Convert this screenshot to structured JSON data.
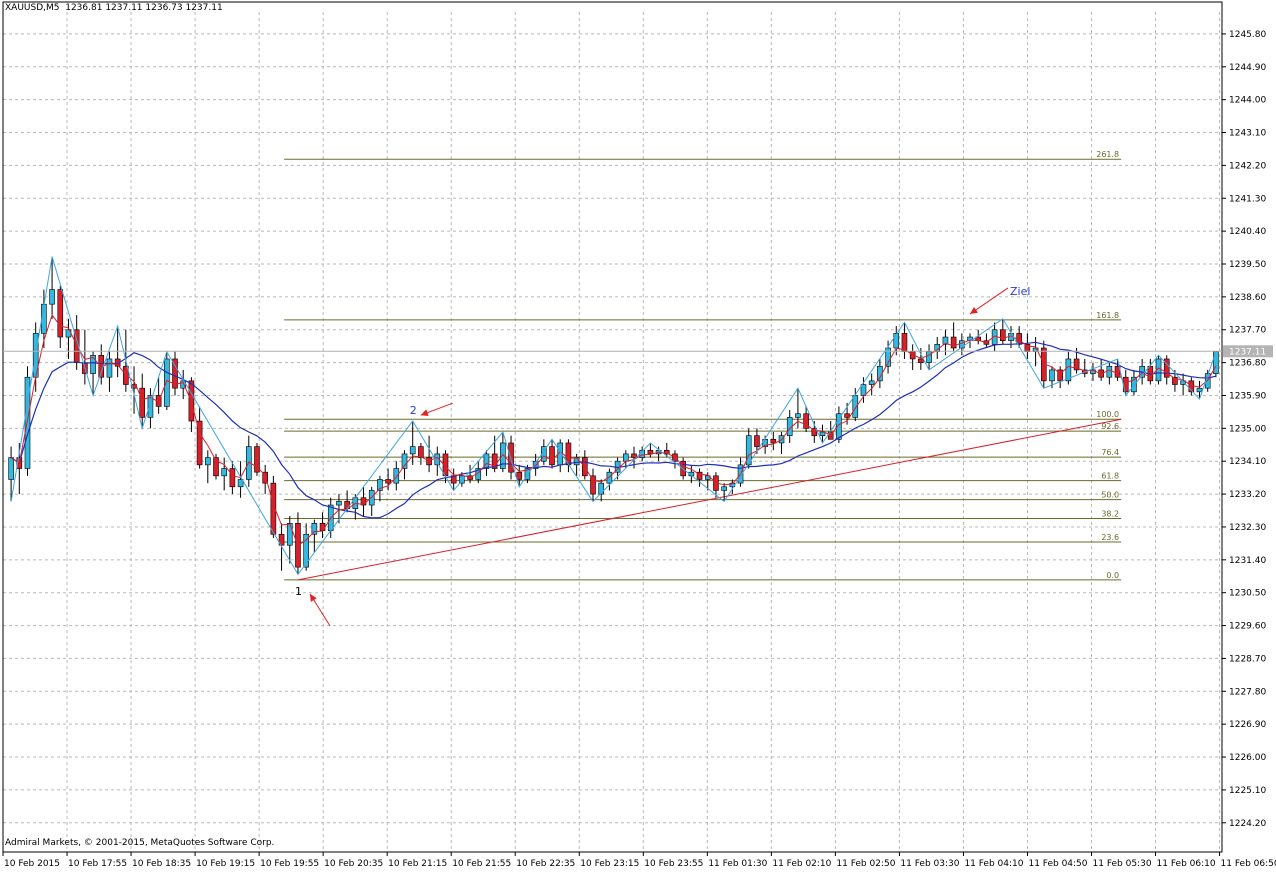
{
  "header": {
    "symbol": "XAUUSD,M5",
    "ohlc": "1236.81 1237.11 1236.73 1237.11"
  },
  "footer": {
    "copyright": "Admiral Markets, © 2001-2015, MetaQuotes Software Corp."
  },
  "colors": {
    "bull": "#33b8e0",
    "bear": "#d8202a",
    "ma_fast": "#d8202a",
    "ma_slow": "#1f2fb8",
    "zigzag": "#3ea6e0",
    "fib": "#6b6b2a",
    "trendline": "#d8202a",
    "grid": "#b8b8b8",
    "arrow": "#e52020",
    "label_blue": "#2a3ad0"
  },
  "chart_data": {
    "type": "candlestick",
    "symbol": "XAUUSD",
    "timeframe": "M5",
    "current_price": "1237.11",
    "y_ticks": [
      "1245.80",
      "1244.90",
      "1244.00",
      "1243.10",
      "1242.20",
      "1241.30",
      "1240.40",
      "1239.50",
      "1238.60",
      "1237.70",
      "1236.80",
      "1235.90",
      "1235.00",
      "1234.10",
      "1233.20",
      "1232.30",
      "1231.40",
      "1230.50",
      "1229.60",
      "1228.70",
      "1227.80",
      "1226.90",
      "1226.00",
      "1225.10",
      "1224.20"
    ],
    "ylim": [
      1223.4,
      1246.4
    ],
    "x_ticks": [
      "10 Feb 2015",
      "10 Feb 17:55",
      "10 Feb 18:35",
      "10 Feb 19:15",
      "10 Feb 19:55",
      "10 Feb 20:35",
      "10 Feb 21:15",
      "10 Feb 21:55",
      "10 Feb 22:35",
      "10 Feb 23:15",
      "10 Feb 23:55",
      "11 Feb 01:30",
      "11 Feb 02:10",
      "11 Feb 02:50",
      "11 Feb 03:30",
      "11 Feb 04:10",
      "11 Feb 04:50",
      "11 Feb 05:30",
      "11 Feb 06:10",
      "11 Feb 06:50"
    ],
    "candles": [
      [
        1233.6,
        1234.5,
        1233.0,
        1234.2
      ],
      [
        1234.2,
        1234.6,
        1233.2,
        1233.9
      ],
      [
        1233.9,
        1236.7,
        1233.7,
        1236.4
      ],
      [
        1236.4,
        1237.9,
        1236.0,
        1237.6
      ],
      [
        1237.6,
        1238.8,
        1237.2,
        1238.4
      ],
      [
        1238.4,
        1239.7,
        1238.0,
        1238.8
      ],
      [
        1238.8,
        1238.9,
        1237.2,
        1237.5
      ],
      [
        1237.5,
        1238.0,
        1236.9,
        1237.7
      ],
      [
        1237.7,
        1238.1,
        1236.6,
        1236.8
      ],
      [
        1236.8,
        1237.7,
        1236.2,
        1236.5
      ],
      [
        1236.5,
        1237.1,
        1235.9,
        1237.0
      ],
      [
        1237.0,
        1237.3,
        1236.2,
        1236.4
      ],
      [
        1236.4,
        1237.1,
        1236.0,
        1236.9
      ],
      [
        1236.9,
        1237.8,
        1236.4,
        1236.7
      ],
      [
        1236.7,
        1237.7,
        1236.0,
        1236.2
      ],
      [
        1236.2,
        1236.7,
        1235.4,
        1236.1
      ],
      [
        1236.1,
        1236.5,
        1235.0,
        1235.3
      ],
      [
        1235.3,
        1236.1,
        1235.0,
        1235.9
      ],
      [
        1235.9,
        1236.4,
        1235.4,
        1235.6
      ],
      [
        1235.6,
        1237.1,
        1235.5,
        1236.9
      ],
      [
        1236.9,
        1237.1,
        1235.9,
        1236.1
      ],
      [
        1236.1,
        1236.6,
        1235.8,
        1236.3
      ],
      [
        1236.3,
        1236.4,
        1234.9,
        1235.2
      ],
      [
        1235.2,
        1235.6,
        1233.9,
        1234.0
      ],
      [
        1234.0,
        1234.4,
        1233.5,
        1234.2
      ],
      [
        1234.2,
        1234.3,
        1233.6,
        1233.7
      ],
      [
        1233.7,
        1234.2,
        1233.3,
        1233.9
      ],
      [
        1233.9,
        1234.1,
        1233.2,
        1233.4
      ],
      [
        1233.4,
        1234.1,
        1233.1,
        1233.6
      ],
      [
        1233.6,
        1234.8,
        1233.4,
        1234.5
      ],
      [
        1234.5,
        1234.6,
        1233.7,
        1233.8
      ],
      [
        1233.8,
        1234.0,
        1233.2,
        1233.5
      ],
      [
        1233.5,
        1233.7,
        1232.0,
        1232.1
      ],
      [
        1232.1,
        1232.4,
        1231.1,
        1231.8
      ],
      [
        1231.8,
        1232.6,
        1231.3,
        1232.4
      ],
      [
        1232.4,
        1232.7,
        1231.0,
        1231.2
      ],
      [
        1231.2,
        1232.4,
        1231.1,
        1232.1
      ],
      [
        1232.1,
        1232.5,
        1231.6,
        1232.4
      ],
      [
        1232.4,
        1232.7,
        1232.0,
        1232.2
      ],
      [
        1232.2,
        1233.1,
        1232.0,
        1232.9
      ],
      [
        1232.9,
        1233.2,
        1232.4,
        1233.0
      ],
      [
        1233.0,
        1233.3,
        1232.7,
        1232.8
      ],
      [
        1232.8,
        1233.2,
        1232.5,
        1233.1
      ],
      [
        1233.1,
        1233.4,
        1232.6,
        1232.9
      ],
      [
        1232.9,
        1233.4,
        1232.6,
        1233.3
      ],
      [
        1233.3,
        1233.7,
        1233.0,
        1233.6
      ],
      [
        1233.6,
        1233.9,
        1233.3,
        1233.5
      ],
      [
        1233.5,
        1234.1,
        1233.3,
        1233.9
      ],
      [
        1233.9,
        1234.4,
        1233.6,
        1234.3
      ],
      [
        1234.3,
        1235.2,
        1234.0,
        1234.5
      ],
      [
        1234.5,
        1234.6,
        1234.0,
        1234.2
      ],
      [
        1234.2,
        1234.8,
        1233.8,
        1234.0
      ],
      [
        1234.0,
        1234.5,
        1233.7,
        1234.3
      ],
      [
        1234.3,
        1234.4,
        1233.5,
        1233.7
      ],
      [
        1233.7,
        1233.9,
        1233.3,
        1233.5
      ],
      [
        1233.5,
        1233.8,
        1233.4,
        1233.7
      ],
      [
        1233.7,
        1234.0,
        1233.5,
        1233.6
      ],
      [
        1233.6,
        1234.1,
        1233.5,
        1233.9
      ],
      [
        1233.9,
        1234.4,
        1233.7,
        1234.3
      ],
      [
        1234.3,
        1234.8,
        1233.8,
        1233.9
      ],
      [
        1233.9,
        1234.9,
        1233.8,
        1234.6
      ],
      [
        1234.6,
        1234.8,
        1233.6,
        1233.8
      ],
      [
        1233.8,
        1234.0,
        1233.4,
        1233.6
      ],
      [
        1233.6,
        1234.0,
        1233.5,
        1233.9
      ],
      [
        1233.9,
        1234.3,
        1233.7,
        1234.1
      ],
      [
        1234.1,
        1234.7,
        1234.0,
        1234.5
      ],
      [
        1234.5,
        1234.7,
        1233.9,
        1234.0
      ],
      [
        1234.0,
        1234.7,
        1233.8,
        1234.6
      ],
      [
        1234.6,
        1234.7,
        1233.8,
        1234.0
      ],
      [
        1234.0,
        1234.3,
        1233.7,
        1234.2
      ],
      [
        1234.2,
        1234.4,
        1233.6,
        1233.7
      ],
      [
        1233.7,
        1233.9,
        1233.0,
        1233.2
      ],
      [
        1233.2,
        1233.6,
        1233.0,
        1233.5
      ],
      [
        1233.5,
        1233.9,
        1233.3,
        1233.8
      ],
      [
        1233.8,
        1234.2,
        1233.6,
        1234.1
      ],
      [
        1234.1,
        1234.4,
        1233.9,
        1234.3
      ],
      [
        1234.3,
        1234.5,
        1233.9,
        1234.2
      ],
      [
        1234.2,
        1234.5,
        1234.1,
        1234.4
      ],
      [
        1234.4,
        1234.6,
        1234.2,
        1234.3
      ],
      [
        1234.3,
        1234.5,
        1234.1,
        1234.4
      ],
      [
        1234.4,
        1234.6,
        1234.2,
        1234.3
      ],
      [
        1234.3,
        1234.4,
        1233.9,
        1234.1
      ],
      [
        1234.1,
        1234.2,
        1233.6,
        1233.7
      ],
      [
        1233.7,
        1234.0,
        1233.5,
        1233.8
      ],
      [
        1233.8,
        1233.9,
        1233.4,
        1233.6
      ],
      [
        1233.6,
        1233.8,
        1233.3,
        1233.7
      ],
      [
        1233.7,
        1233.8,
        1233.1,
        1233.3
      ],
      [
        1233.3,
        1233.5,
        1233.0,
        1233.4
      ],
      [
        1233.4,
        1233.6,
        1233.2,
        1233.5
      ],
      [
        1233.5,
        1234.2,
        1233.4,
        1234.0
      ],
      [
        1234.0,
        1235.0,
        1233.9,
        1234.8
      ],
      [
        1234.8,
        1235.0,
        1234.3,
        1234.5
      ],
      [
        1234.5,
        1234.8,
        1234.3,
        1234.7
      ],
      [
        1234.7,
        1234.9,
        1234.4,
        1234.6
      ],
      [
        1234.6,
        1234.9,
        1234.3,
        1234.8
      ],
      [
        1234.8,
        1235.5,
        1234.6,
        1235.3
      ],
      [
        1235.3,
        1236.1,
        1235.0,
        1235.4
      ],
      [
        1235.4,
        1235.6,
        1234.9,
        1235.0
      ],
      [
        1235.0,
        1235.2,
        1234.6,
        1234.8
      ],
      [
        1234.8,
        1235.1,
        1234.6,
        1234.9
      ],
      [
        1234.9,
        1235.2,
        1234.7,
        1234.7
      ],
      [
        1234.7,
        1235.6,
        1234.6,
        1235.4
      ],
      [
        1235.4,
        1235.7,
        1235.1,
        1235.3
      ],
      [
        1235.3,
        1236.1,
        1235.2,
        1235.9
      ],
      [
        1235.9,
        1236.4,
        1235.7,
        1236.2
      ],
      [
        1236.2,
        1236.5,
        1235.9,
        1236.3
      ],
      [
        1236.3,
        1236.9,
        1236.1,
        1236.7
      ],
      [
        1236.7,
        1237.4,
        1236.5,
        1237.2
      ],
      [
        1237.2,
        1237.8,
        1237.0,
        1237.6
      ],
      [
        1237.6,
        1237.9,
        1236.9,
        1237.1
      ],
      [
        1237.1,
        1237.3,
        1236.6,
        1236.9
      ],
      [
        1236.9,
        1237.2,
        1236.6,
        1236.8
      ],
      [
        1236.8,
        1237.3,
        1236.6,
        1237.1
      ],
      [
        1237.1,
        1237.5,
        1236.9,
        1237.3
      ],
      [
        1237.3,
        1237.7,
        1237.0,
        1237.5
      ],
      [
        1237.5,
        1237.9,
        1237.1,
        1237.2
      ],
      [
        1237.2,
        1237.6,
        1237.0,
        1237.4
      ],
      [
        1237.4,
        1237.6,
        1237.2,
        1237.5
      ],
      [
        1237.5,
        1237.7,
        1237.3,
        1237.4
      ],
      [
        1237.4,
        1237.6,
        1237.2,
        1237.3
      ],
      [
        1237.3,
        1237.9,
        1237.1,
        1237.7
      ],
      [
        1237.7,
        1238.0,
        1237.3,
        1237.4
      ],
      [
        1237.4,
        1237.8,
        1237.2,
        1237.6
      ],
      [
        1237.6,
        1237.8,
        1237.2,
        1237.3
      ],
      [
        1237.3,
        1237.6,
        1236.9,
        1237.1
      ],
      [
        1237.1,
        1237.5,
        1236.7,
        1237.2
      ],
      [
        1237.2,
        1237.4,
        1236.1,
        1236.3
      ],
      [
        1236.3,
        1236.7,
        1236.1,
        1236.6
      ],
      [
        1236.6,
        1236.7,
        1236.1,
        1236.3
      ],
      [
        1236.3,
        1237.1,
        1236.2,
        1236.9
      ],
      [
        1236.9,
        1237.2,
        1236.5,
        1236.6
      ],
      [
        1236.6,
        1236.9,
        1236.4,
        1236.5
      ],
      [
        1236.5,
        1236.8,
        1236.3,
        1236.6
      ],
      [
        1236.6,
        1236.9,
        1236.3,
        1236.4
      ],
      [
        1236.4,
        1236.8,
        1236.2,
        1236.7
      ],
      [
        1236.7,
        1236.9,
        1236.3,
        1236.4
      ],
      [
        1236.4,
        1236.6,
        1235.9,
        1236.0
      ],
      [
        1236.0,
        1236.6,
        1235.9,
        1236.4
      ],
      [
        1236.4,
        1236.9,
        1236.2,
        1236.7
      ],
      [
        1236.7,
        1236.9,
        1236.2,
        1236.3
      ],
      [
        1236.3,
        1237.0,
        1236.2,
        1236.9
      ],
      [
        1236.9,
        1237.0,
        1236.2,
        1236.4
      ],
      [
        1236.4,
        1236.6,
        1236.0,
        1236.2
      ],
      [
        1236.2,
        1236.5,
        1235.9,
        1236.3
      ],
      [
        1236.3,
        1236.4,
        1235.9,
        1236.0
      ],
      [
        1236.0,
        1236.3,
        1235.8,
        1236.1
      ],
      [
        1236.1,
        1236.6,
        1236.0,
        1236.5
      ],
      [
        1236.5,
        1237.1,
        1236.4,
        1237.1
      ]
    ],
    "fibonacci": {
      "low": 1230.85,
      "high": 1235.25,
      "levels": [
        {
          "label": "0.0",
          "ratio": 0
        },
        {
          "label": "23.6",
          "ratio": 0.236
        },
        {
          "label": "38.2",
          "ratio": 0.382
        },
        {
          "label": "50.0",
          "ratio": 0.5
        },
        {
          "label": "61.8",
          "ratio": 0.618
        },
        {
          "label": "76.4",
          "ratio": 0.764
        },
        {
          "label": "92.6",
          "ratio": 0.926
        },
        {
          "label": "100.0",
          "ratio": 1.0
        },
        {
          "label": "161.8",
          "ratio": 1.618
        },
        {
          "label": "261.8",
          "ratio": 2.618
        }
      ]
    },
    "annotations": [
      {
        "text": "1"
      },
      {
        "text": "2"
      },
      {
        "text": "Ziel"
      }
    ]
  }
}
